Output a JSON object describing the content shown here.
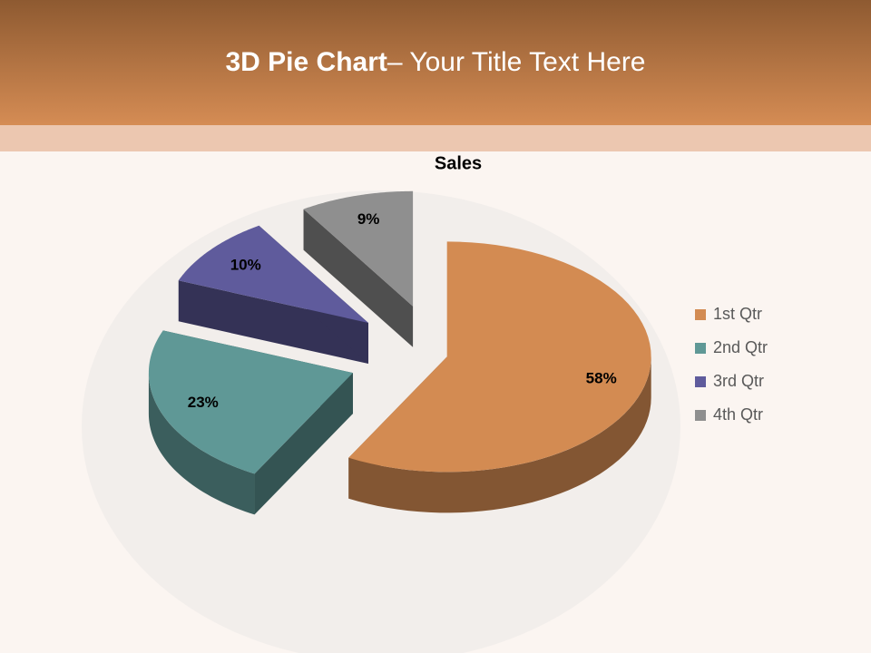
{
  "slide_title": {
    "bold": "3D Pie Chart",
    "text": "– Your Title Text Here"
  },
  "chart_data": {
    "type": "pie",
    "title": "Sales",
    "categories": [
      "1st Qtr",
      "2nd Qtr",
      "3rd Qtr",
      "4th Qtr"
    ],
    "values": [
      58,
      23,
      10,
      9
    ],
    "value_labels": [
      "58%",
      "23%",
      "10%",
      "9%"
    ],
    "colors": [
      "#d38b52",
      "#5f9896",
      "#5f5b9c",
      "#8f8f8f"
    ],
    "legend": "right"
  }
}
